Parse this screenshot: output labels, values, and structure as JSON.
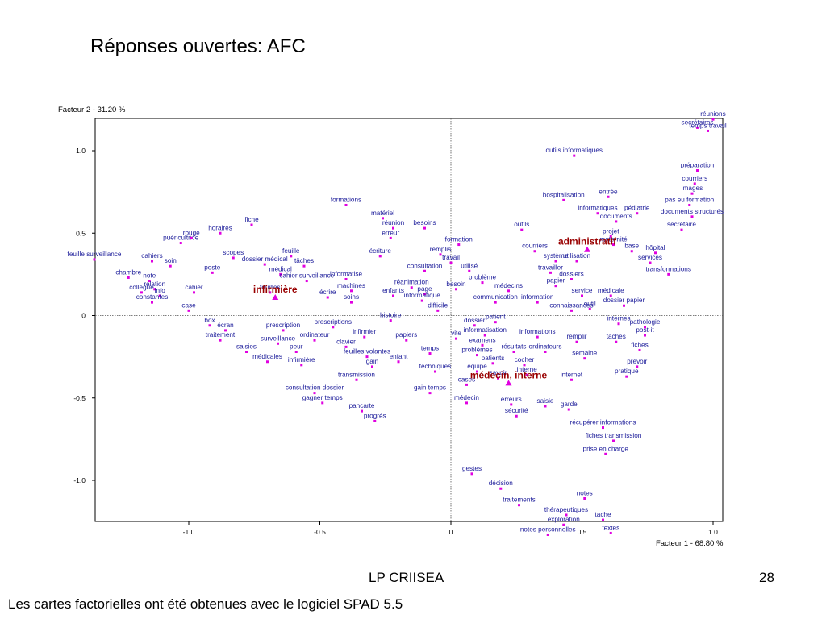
{
  "slide": {
    "title": "Réponses ouvertes: AFC",
    "footer_center": "LP CRIISEA",
    "page_number": "28",
    "footnote": "Les cartes factorielles ont été obtenues avec le logiciel SPAD 5.5"
  },
  "chart_data": {
    "type": "scatter",
    "xlabel": "Facteur 1  -  68.80 %",
    "ylabel": "Facteur 2  -  31.20 %",
    "xlim": [
      -1.38,
      1.04
    ],
    "ylim": [
      -1.25,
      1.2
    ],
    "xticks": [
      "-1.0",
      "-0.5",
      "0",
      "0.5",
      "1.0"
    ],
    "yticks": [
      "1.0",
      "0.5",
      "0",
      "-0.5",
      "-1.0"
    ],
    "xtick_values": [
      -1.0,
      -0.5,
      0,
      0.5,
      1.0
    ],
    "ytick_values": [
      1.0,
      0.5,
      0,
      -0.5,
      -1.0
    ],
    "colors": {
      "word": "#1a1a99",
      "point": "#e000e0",
      "group": "#990000",
      "group_marker": "#e000e0"
    },
    "groups": [
      {
        "label": "infirmière",
        "x": -0.67,
        "y": 0.11
      },
      {
        "label": "administratif",
        "x": 0.52,
        "y": 0.4
      },
      {
        "label": "médecin, interne",
        "x": 0.22,
        "y": -0.41
      }
    ],
    "points": [
      {
        "label": "feuille surveillance",
        "x": -1.36,
        "y": 0.34
      },
      {
        "label": "chambre",
        "x": -1.23,
        "y": 0.23
      },
      {
        "label": "cahiers",
        "x": -1.14,
        "y": 0.33
      },
      {
        "label": "soin",
        "x": -1.07,
        "y": 0.3
      },
      {
        "label": "note",
        "x": -1.15,
        "y": 0.21
      },
      {
        "label": "collègue",
        "x": -1.18,
        "y": 0.14
      },
      {
        "label": "relation",
        "x": -1.13,
        "y": 0.16
      },
      {
        "label": "info",
        "x": -1.11,
        "y": 0.12
      },
      {
        "label": "constantes",
        "x": -1.14,
        "y": 0.08
      },
      {
        "label": "case",
        "x": -1.0,
        "y": 0.03
      },
      {
        "label": "cahier",
        "x": -0.98,
        "y": 0.14
      },
      {
        "label": "poste",
        "x": -0.91,
        "y": 0.26
      },
      {
        "label": "puéricultrice",
        "x": -1.03,
        "y": 0.44
      },
      {
        "label": "rouge",
        "x": -0.99,
        "y": 0.47
      },
      {
        "label": "horaires",
        "x": -0.88,
        "y": 0.5
      },
      {
        "label": "fiche",
        "x": -0.76,
        "y": 0.55
      },
      {
        "label": "scopes",
        "x": -0.83,
        "y": 0.35
      },
      {
        "label": "dossier médical",
        "x": -0.71,
        "y": 0.31
      },
      {
        "label": "médical",
        "x": -0.65,
        "y": 0.25
      },
      {
        "label": "feuille",
        "x": -0.61,
        "y": 0.36
      },
      {
        "label": "tâches",
        "x": -0.56,
        "y": 0.3
      },
      {
        "label": "cahier surveillance",
        "x": -0.55,
        "y": 0.21
      },
      {
        "label": "feuilles",
        "x": -0.69,
        "y": 0.14
      },
      {
        "label": "formations",
        "x": -0.4,
        "y": 0.67
      },
      {
        "label": "matériel",
        "x": -0.26,
        "y": 0.59
      },
      {
        "label": "réunion",
        "x": -0.22,
        "y": 0.53
      },
      {
        "label": "erreur",
        "x": -0.23,
        "y": 0.47
      },
      {
        "label": "besoins",
        "x": -0.1,
        "y": 0.53
      },
      {
        "label": "informatisé",
        "x": -0.4,
        "y": 0.22
      },
      {
        "label": "machines",
        "x": -0.38,
        "y": 0.15
      },
      {
        "label": "écrire",
        "x": -0.47,
        "y": 0.11
      },
      {
        "label": "soins",
        "x": -0.38,
        "y": 0.08
      },
      {
        "label": "écriture",
        "x": -0.27,
        "y": 0.36
      },
      {
        "label": "réanimation",
        "x": -0.15,
        "y": 0.17
      },
      {
        "label": "enfants",
        "x": -0.22,
        "y": 0.12
      },
      {
        "label": "page",
        "x": -0.1,
        "y": 0.13
      },
      {
        "label": "informatique",
        "x": -0.11,
        "y": 0.09
      },
      {
        "label": "difficile",
        "x": -0.05,
        "y": 0.03
      },
      {
        "label": "remplis",
        "x": -0.04,
        "y": 0.37
      },
      {
        "label": "consultation",
        "x": -0.1,
        "y": 0.27
      },
      {
        "label": "travail",
        "x": 0.0,
        "y": 0.32
      },
      {
        "label": "utilisé",
        "x": 0.07,
        "y": 0.27
      },
      {
        "label": "formation",
        "x": 0.03,
        "y": 0.43
      },
      {
        "label": "besoin",
        "x": 0.02,
        "y": 0.16
      },
      {
        "label": "problème",
        "x": 0.12,
        "y": 0.2
      },
      {
        "label": "médecins",
        "x": 0.22,
        "y": 0.15
      },
      {
        "label": "communication",
        "x": 0.17,
        "y": 0.08
      },
      {
        "label": "box",
        "x": -0.92,
        "y": -0.06
      },
      {
        "label": "écran",
        "x": -0.86,
        "y": -0.09
      },
      {
        "label": "traitement",
        "x": -0.88,
        "y": -0.15
      },
      {
        "label": "prescription",
        "x": -0.64,
        "y": -0.09
      },
      {
        "label": "surveillance",
        "x": -0.66,
        "y": -0.17
      },
      {
        "label": "saisies",
        "x": -0.78,
        "y": -0.22
      },
      {
        "label": "médicales",
        "x": -0.7,
        "y": -0.28
      },
      {
        "label": "peur",
        "x": -0.59,
        "y": -0.22
      },
      {
        "label": "infirmière",
        "x": -0.57,
        "y": -0.3
      },
      {
        "label": "ordinateur",
        "x": -0.52,
        "y": -0.15
      },
      {
        "label": "prescriptions",
        "x": -0.45,
        "y": -0.07
      },
      {
        "label": "infirmier",
        "x": -0.33,
        "y": -0.13
      },
      {
        "label": "clavier",
        "x": -0.4,
        "y": -0.19
      },
      {
        "label": "feuilles volantes",
        "x": -0.32,
        "y": -0.25
      },
      {
        "label": "gain",
        "x": -0.3,
        "y": -0.31
      },
      {
        "label": "transmission",
        "x": -0.36,
        "y": -0.39
      },
      {
        "label": "histoire",
        "x": -0.23,
        "y": -0.03
      },
      {
        "label": "papiers",
        "x": -0.17,
        "y": -0.15
      },
      {
        "label": "enfant",
        "x": -0.2,
        "y": -0.28
      },
      {
        "label": "temps",
        "x": -0.08,
        "y": -0.23
      },
      {
        "label": "techniques",
        "x": -0.06,
        "y": -0.34
      },
      {
        "label": "consultation dossier",
        "x": -0.52,
        "y": -0.47
      },
      {
        "label": "gagner temps",
        "x": -0.49,
        "y": -0.53
      },
      {
        "label": "pancarte",
        "x": -0.34,
        "y": -0.58
      },
      {
        "label": "progrès",
        "x": -0.29,
        "y": -0.64
      },
      {
        "label": "gain temps",
        "x": -0.08,
        "y": -0.47
      },
      {
        "label": "outils informatiques",
        "x": 0.47,
        "y": 0.97
      },
      {
        "label": "hospitalisation",
        "x": 0.43,
        "y": 0.7
      },
      {
        "label": "entrée",
        "x": 0.6,
        "y": 0.72
      },
      {
        "label": "informatiques",
        "x": 0.56,
        "y": 0.62
      },
      {
        "label": "documents",
        "x": 0.63,
        "y": 0.57
      },
      {
        "label": "pédiatrie",
        "x": 0.71,
        "y": 0.62
      },
      {
        "label": "outils",
        "x": 0.27,
        "y": 0.52
      },
      {
        "label": "courriers",
        "x": 0.32,
        "y": 0.39
      },
      {
        "label": "système",
        "x": 0.4,
        "y": 0.33
      },
      {
        "label": "utilisation",
        "x": 0.48,
        "y": 0.33
      },
      {
        "label": "projet",
        "x": 0.61,
        "y": 0.48
      },
      {
        "label": "maternité",
        "x": 0.62,
        "y": 0.43
      },
      {
        "label": "base",
        "x": 0.69,
        "y": 0.39
      },
      {
        "label": "hôpital",
        "x": 0.78,
        "y": 0.38
      },
      {
        "label": "services",
        "x": 0.76,
        "y": 0.32
      },
      {
        "label": "transformations",
        "x": 0.83,
        "y": 0.25
      },
      {
        "label": "travailler",
        "x": 0.38,
        "y": 0.26
      },
      {
        "label": "dossiers",
        "x": 0.46,
        "y": 0.22
      },
      {
        "label": "papier",
        "x": 0.4,
        "y": 0.18
      },
      {
        "label": "service",
        "x": 0.5,
        "y": 0.12
      },
      {
        "label": "médicale",
        "x": 0.61,
        "y": 0.12
      },
      {
        "label": "information",
        "x": 0.33,
        "y": 0.08
      },
      {
        "label": "dossier papier",
        "x": 0.66,
        "y": 0.06
      },
      {
        "label": "connaissances",
        "x": 0.46,
        "y": 0.03
      },
      {
        "label": "outil",
        "x": 0.53,
        "y": 0.04
      },
      {
        "label": "réunions",
        "x": 1.0,
        "y": 1.19
      },
      {
        "label": "secrétaires",
        "x": 0.94,
        "y": 1.14
      },
      {
        "label": "temps travail",
        "x": 0.98,
        "y": 1.12
      },
      {
        "label": "préparation",
        "x": 0.94,
        "y": 0.88
      },
      {
        "label": "courriers",
        "x": 0.93,
        "y": 0.8
      },
      {
        "label": "images",
        "x": 0.92,
        "y": 0.74
      },
      {
        "label": "pas eu formation",
        "x": 0.91,
        "y": 0.67
      },
      {
        "label": "documents structurés",
        "x": 0.92,
        "y": 0.6
      },
      {
        "label": "secrétaire",
        "x": 0.88,
        "y": 0.52
      },
      {
        "label": "dossier",
        "x": 0.09,
        "y": -0.06
      },
      {
        "label": "patient",
        "x": 0.17,
        "y": -0.04
      },
      {
        "label": "informatisation",
        "x": 0.13,
        "y": -0.12
      },
      {
        "label": "vite",
        "x": 0.02,
        "y": -0.14
      },
      {
        "label": "examens",
        "x": 0.12,
        "y": -0.18
      },
      {
        "label": "problèmes",
        "x": 0.1,
        "y": -0.24
      },
      {
        "label": "résultats",
        "x": 0.24,
        "y": -0.22
      },
      {
        "label": "patients",
        "x": 0.16,
        "y": -0.29
      },
      {
        "label": "cocher",
        "x": 0.28,
        "y": -0.3
      },
      {
        "label": "équipe",
        "x": 0.1,
        "y": -0.34
      },
      {
        "label": "savoir",
        "x": 0.18,
        "y": -0.38
      },
      {
        "label": "interne",
        "x": 0.29,
        "y": -0.36
      },
      {
        "label": "cases",
        "x": 0.06,
        "y": -0.42
      },
      {
        "label": "médecin",
        "x": 0.06,
        "y": -0.53
      },
      {
        "label": "erreurs",
        "x": 0.23,
        "y": -0.54
      },
      {
        "label": "sécurité",
        "x": 0.25,
        "y": -0.61
      },
      {
        "label": "saisie",
        "x": 0.36,
        "y": -0.55
      },
      {
        "label": "garde",
        "x": 0.45,
        "y": -0.57
      },
      {
        "label": "informations",
        "x": 0.33,
        "y": -0.13
      },
      {
        "label": "ordinateurs",
        "x": 0.36,
        "y": -0.22
      },
      {
        "label": "remplir",
        "x": 0.48,
        "y": -0.16
      },
      {
        "label": "semaine",
        "x": 0.51,
        "y": -0.26
      },
      {
        "label": "internet",
        "x": 0.46,
        "y": -0.39
      },
      {
        "label": "internes",
        "x": 0.64,
        "y": -0.05
      },
      {
        "label": "taches",
        "x": 0.63,
        "y": -0.16
      },
      {
        "label": "pathologie",
        "x": 0.74,
        "y": -0.07
      },
      {
        "label": "post-it",
        "x": 0.74,
        "y": -0.12
      },
      {
        "label": "fiches",
        "x": 0.72,
        "y": -0.21
      },
      {
        "label": "prévoir",
        "x": 0.71,
        "y": -0.31
      },
      {
        "label": "pratique",
        "x": 0.67,
        "y": -0.37
      },
      {
        "label": "récupérer informations",
        "x": 0.58,
        "y": -0.68
      },
      {
        "label": "fiches transmission",
        "x": 0.62,
        "y": -0.76
      },
      {
        "label": "prise en charge",
        "x": 0.59,
        "y": -0.84
      },
      {
        "label": "gestes",
        "x": 0.08,
        "y": -0.96
      },
      {
        "label": "décision",
        "x": 0.19,
        "y": -1.05
      },
      {
        "label": "traitements",
        "x": 0.26,
        "y": -1.15
      },
      {
        "label": "notes",
        "x": 0.51,
        "y": -1.11
      },
      {
        "label": "thérapeutiques",
        "x": 0.44,
        "y": -1.21
      },
      {
        "label": "exploration",
        "x": 0.43,
        "y": -1.27
      },
      {
        "label": "notes personnelles",
        "x": 0.37,
        "y": -1.33
      },
      {
        "label": "tache",
        "x": 0.58,
        "y": -1.24
      },
      {
        "label": "textes",
        "x": 0.61,
        "y": -1.32
      }
    ]
  }
}
